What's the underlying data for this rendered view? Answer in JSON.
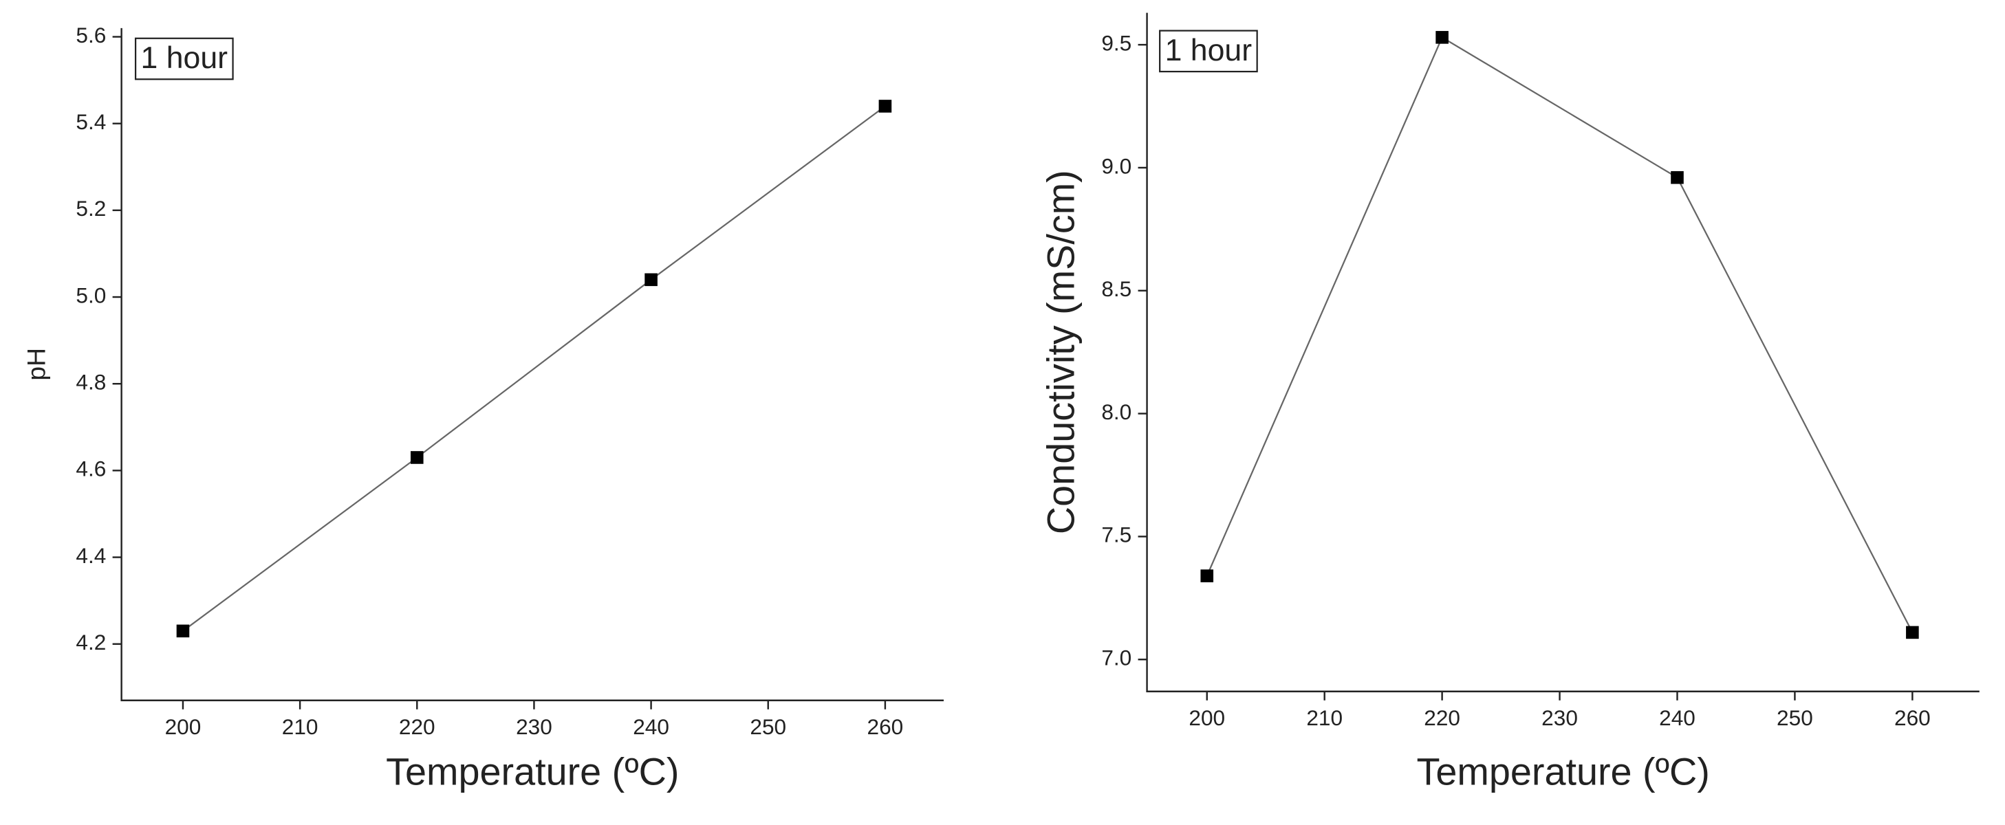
{
  "chart_data": [
    {
      "type": "line",
      "x_label": "Temperature (ºC)",
      "y_label": "pH",
      "annotation": "1 hour",
      "x": [
        200,
        220,
        240,
        260
      ],
      "values": [
        4.23,
        4.63,
        5.04,
        5.44
      ],
      "color": "#000000",
      "xlim": [
        194.75,
        265
      ],
      "xticks": [
        200,
        210,
        220,
        230,
        240,
        250,
        260
      ],
      "ylim": [
        4.07,
        5.62
      ],
      "yticks": [
        4.2,
        4.4,
        4.6,
        4.8,
        {
          "value": 5,
          "label": "5.0"
        },
        5.2,
        5.4,
        5.6
      ]
    },
    {
      "type": "line",
      "x_label": "Temperature (ºC)",
      "y_label": "Conductivity (mS/cm)",
      "annotation": "1 hour",
      "x": [
        200,
        220,
        240,
        260
      ],
      "values": [
        7.34,
        9.53,
        8.96,
        7.11
      ],
      "color": "#000000",
      "xlim": [
        194.9,
        265.7
      ],
      "xticks": [
        200,
        210,
        220,
        230,
        240,
        250,
        260
      ],
      "ylim": [
        6.87,
        9.63
      ],
      "yticks": [
        {
          "value": 7,
          "label": "7.0"
        },
        7.5,
        {
          "value": 8,
          "label": "8.0"
        },
        8.5,
        {
          "value": 9,
          "label": "9.0"
        },
        9.5
      ]
    }
  ]
}
